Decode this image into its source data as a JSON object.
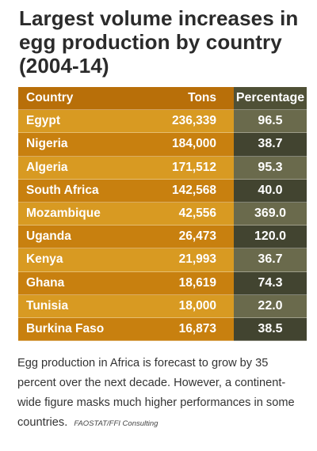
{
  "title": "Largest volume increases in egg production by country (2004-14)",
  "headers": {
    "country": "Country",
    "tons": "Tons",
    "percentage": "Percentage"
  },
  "rows": [
    {
      "country": "Egypt",
      "tons": "236,339",
      "percentage": "96.5"
    },
    {
      "country": "Nigeria",
      "tons": "184,000",
      "percentage": "38.7"
    },
    {
      "country": "Algeria",
      "tons": "171,512",
      "percentage": "95.3"
    },
    {
      "country": "South Africa",
      "tons": "142,568",
      "percentage": "40.0"
    },
    {
      "country": "Mozambique",
      "tons": "42,556",
      "percentage": "369.0"
    },
    {
      "country": "Uganda",
      "tons": "26,473",
      "percentage": "120.0"
    },
    {
      "country": "Kenya",
      "tons": "21,993",
      "percentage": "36.7"
    },
    {
      "country": "Ghana",
      "tons": "18,619",
      "percentage": "74.3"
    },
    {
      "country": "Tunisia",
      "tons": "18,000",
      "percentage": "22.0"
    },
    {
      "country": "Burkina Faso",
      "tons": "16,873",
      "percentage": "38.5"
    }
  ],
  "caption": "Egg production in Africa is forecast to grow by 35 percent over the next decade. However, a continent-wide figure masks much higher performances in some countries.",
  "source": "FAOSTAT/FFI Consulting",
  "colors": {
    "header_left": "#b86f09",
    "header_right": "#4f5036",
    "row_left_light": "#d89a22",
    "row_left_dark": "#c8800f",
    "row_right_light": "#6a6a4c",
    "row_right_dark": "#424430"
  }
}
